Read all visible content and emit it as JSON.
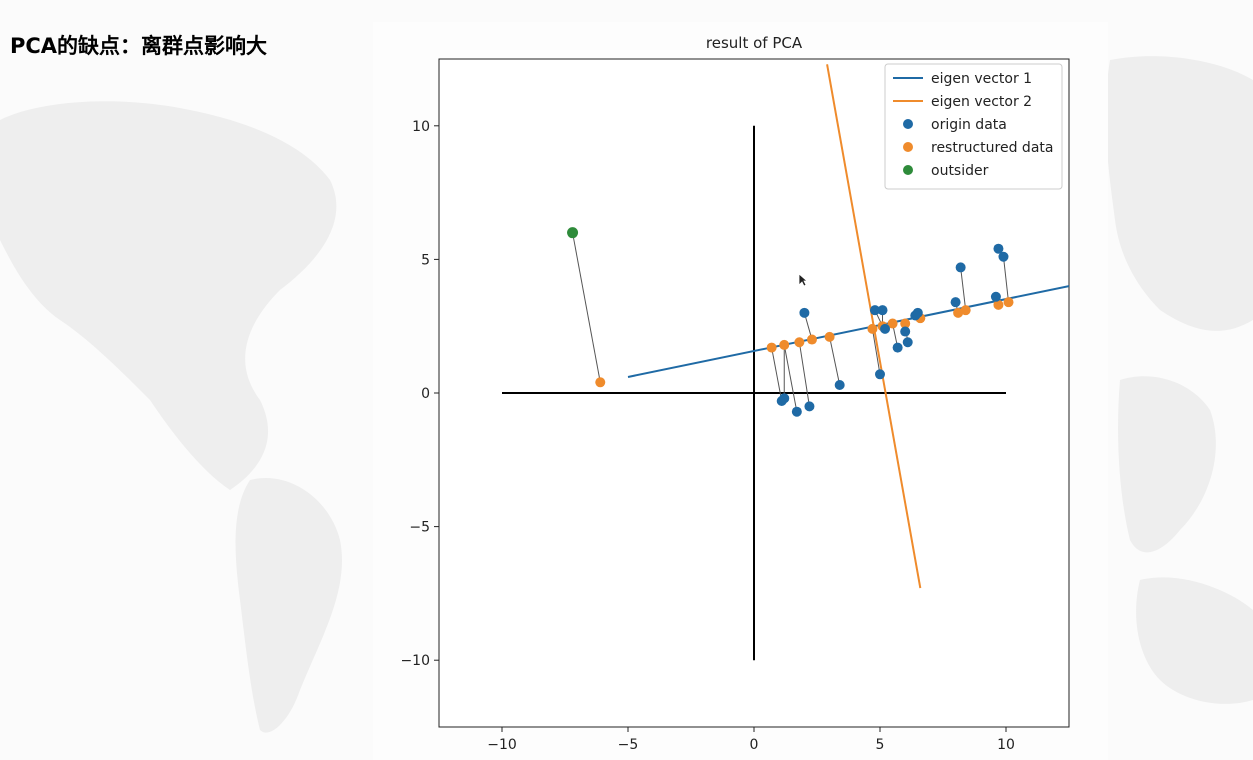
{
  "slide": {
    "title": "PCA的缺点：离群点影响大"
  },
  "colors": {
    "blue": "#1f6aa5",
    "orange": "#ef8b2c",
    "green": "#2e8b3a",
    "axis": "#000000",
    "connector": "#555555",
    "map": "#ececec"
  },
  "chart_data": {
    "type": "scatter",
    "title": "result of PCA",
    "xlabel": "",
    "ylabel": "",
    "xlim": [
      -12.5,
      12.5
    ],
    "ylim": [
      -12.5,
      12.5
    ],
    "xticks": [
      -10,
      -5,
      0,
      5,
      10
    ],
    "yticks": [
      -10,
      -5,
      0,
      5,
      10
    ],
    "xtick_labels": [
      "−10",
      "−5",
      "0",
      "5",
      "10"
    ],
    "ytick_labels": [
      "−10",
      "−5",
      "0",
      "5",
      "10"
    ],
    "grid": false,
    "legend_position": "top-right",
    "legend": [
      {
        "label": "eigen vector 1",
        "marker": "line",
        "color": "#1f6aa5"
      },
      {
        "label": "eigen vector 2",
        "marker": "line",
        "color": "#ef8b2c"
      },
      {
        "label": "origin data",
        "marker": "dot",
        "color": "#1f6aa5"
      },
      {
        "label": "restructured data",
        "marker": "dot",
        "color": "#ef8b2c"
      },
      {
        "label": "outsider",
        "marker": "dot",
        "color": "#2e8b3a"
      }
    ],
    "axis_cross": {
      "horizontal": [
        [
          -10,
          0
        ],
        [
          10,
          0
        ]
      ],
      "vertical": [
        [
          0,
          -10
        ],
        [
          0,
          10
        ]
      ]
    },
    "eigen_vector_1": [
      [
        -5,
        0.6
      ],
      [
        12.5,
        4
      ]
    ],
    "eigen_vector_2": [
      [
        2.9,
        12.3
      ],
      [
        6.6,
        -7.3
      ]
    ],
    "origin_data": [
      [
        1.1,
        -0.3
      ],
      [
        1.2,
        -0.2
      ],
      [
        1.7,
        -0.7
      ],
      [
        2.2,
        -0.5
      ],
      [
        2.0,
        3.0
      ],
      [
        3.4,
        0.3
      ],
      [
        5.0,
        0.7
      ],
      [
        4.8,
        3.1
      ],
      [
        5.1,
        3.1
      ],
      [
        5.2,
        2.4
      ],
      [
        5.7,
        1.7
      ],
      [
        6.0,
        2.3
      ],
      [
        6.1,
        1.9
      ],
      [
        6.4,
        2.9
      ],
      [
        6.5,
        3.0
      ],
      [
        8.0,
        3.4
      ],
      [
        8.2,
        4.7
      ],
      [
        9.6,
        3.6
      ],
      [
        9.7,
        5.4
      ],
      [
        9.9,
        5.1
      ]
    ],
    "restructured_data": [
      [
        0.7,
        1.7
      ],
      [
        1.2,
        1.8
      ],
      [
        1.8,
        1.9
      ],
      [
        2.3,
        2.0
      ],
      [
        3.0,
        2.1
      ],
      [
        4.7,
        2.4
      ],
      [
        5.1,
        2.5
      ],
      [
        5.5,
        2.6
      ],
      [
        6.0,
        2.6
      ],
      [
        6.6,
        2.8
      ],
      [
        8.1,
        3.0
      ],
      [
        8.4,
        3.1
      ],
      [
        9.7,
        3.3
      ],
      [
        10.1,
        3.4
      ]
    ],
    "connectors": [
      [
        [
          1.1,
          -0.3
        ],
        [
          0.7,
          1.7
        ]
      ],
      [
        [
          1.2,
          -0.2
        ],
        [
          1.2,
          1.8
        ]
      ],
      [
        [
          1.7,
          -0.7
        ],
        [
          1.2,
          1.8
        ]
      ],
      [
        [
          2.2,
          -0.5
        ],
        [
          1.8,
          1.9
        ]
      ],
      [
        [
          2.0,
          3.0
        ],
        [
          2.3,
          2.0
        ]
      ],
      [
        [
          3.4,
          0.3
        ],
        [
          3.0,
          2.1
        ]
      ],
      [
        [
          5.0,
          0.7
        ],
        [
          4.7,
          2.4
        ]
      ],
      [
        [
          4.8,
          3.1
        ],
        [
          5.1,
          2.5
        ]
      ],
      [
        [
          5.1,
          3.1
        ],
        [
          5.1,
          2.5
        ]
      ],
      [
        [
          5.7,
          1.7
        ],
        [
          5.5,
          2.6
        ]
      ],
      [
        [
          6.1,
          1.9
        ],
        [
          6.0,
          2.6
        ]
      ],
      [
        [
          6.5,
          3.0
        ],
        [
          6.6,
          2.8
        ]
      ],
      [
        [
          8.0,
          3.4
        ],
        [
          8.1,
          3.0
        ]
      ],
      [
        [
          8.2,
          4.7
        ],
        [
          8.4,
          3.1
        ]
      ],
      [
        [
          9.6,
          3.6
        ],
        [
          9.7,
          3.3
        ]
      ],
      [
        [
          9.9,
          5.1
        ],
        [
          10.1,
          3.4
        ]
      ]
    ],
    "outsider": {
      "point": [
        -7.2,
        6.0
      ],
      "projection": [
        -6.1,
        0.4
      ]
    }
  }
}
